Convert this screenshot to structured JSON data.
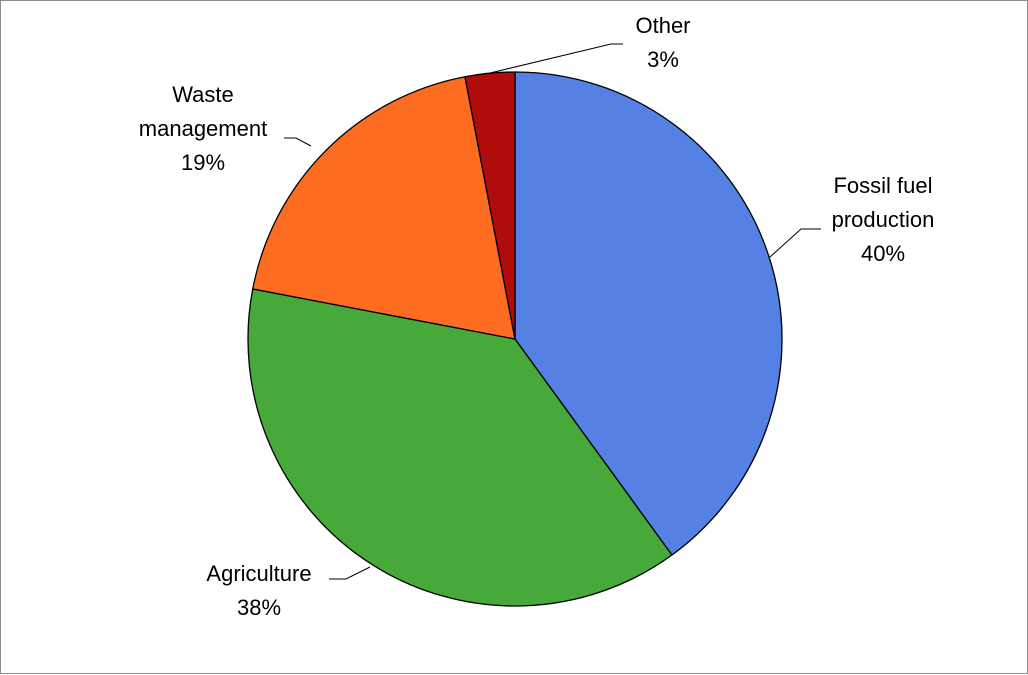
{
  "chart_data": {
    "type": "pie",
    "title": "",
    "slices": [
      {
        "name": "Fossil fuel production",
        "label_lines": [
          "Fossil fuel",
          "production"
        ],
        "value": 40,
        "value_label": "40%",
        "color": "#5580e4"
      },
      {
        "name": "Agriculture",
        "label_lines": [
          "Agriculture"
        ],
        "value": 38,
        "value_label": "38%",
        "color": "#46a93a"
      },
      {
        "name": "Waste management",
        "label_lines": [
          "Waste",
          "management"
        ],
        "value": 19,
        "value_label": "19%",
        "color": "#fe6c22"
      },
      {
        "name": "Other",
        "label_lines": [
          "Other"
        ],
        "value": 3,
        "value_label": "3%",
        "color": "#b10c0c"
      }
    ],
    "start_angle": "12 o'clock",
    "direction": "clockwise",
    "legend": "none",
    "slice_border_color": "#000000"
  }
}
